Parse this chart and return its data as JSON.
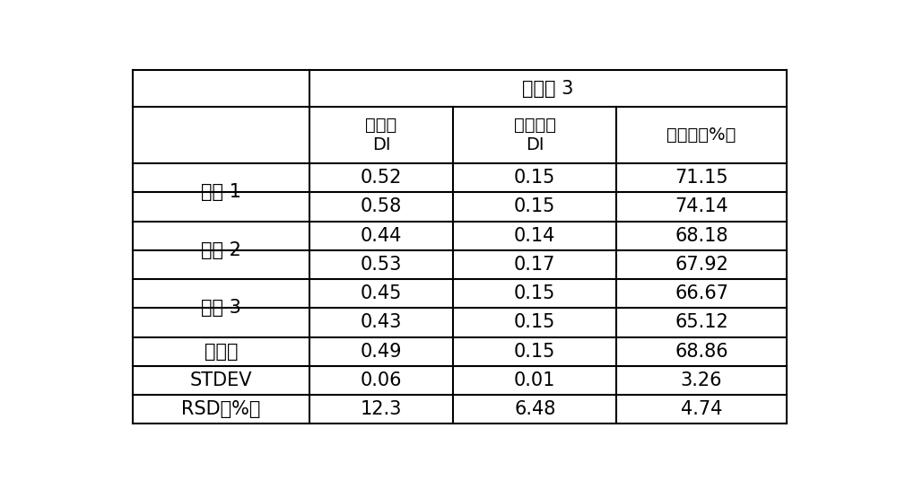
{
  "title": "实施例 3",
  "col1_header": "阳性组\nDI",
  "col2_header": "共培养组\nDI",
  "col3_header": "抑制率（%）",
  "row_groups": [
    {
      "label": "平行 1",
      "rows": [
        [
          "0.52",
          "0.15",
          "71.15"
        ],
        [
          "0.58",
          "0.15",
          "74.14"
        ]
      ]
    },
    {
      "label": "平行 2",
      "rows": [
        [
          "0.44",
          "0.14",
          "68.18"
        ],
        [
          "0.53",
          "0.17",
          "67.92"
        ]
      ]
    },
    {
      "label": "平行 3",
      "rows": [
        [
          "0.45",
          "0.15",
          "66.67"
        ],
        [
          "0.43",
          "0.15",
          "65.12"
        ]
      ]
    }
  ],
  "summary_rows": [
    [
      "平均値",
      "0.49",
      "0.15",
      "68.86"
    ],
    [
      "STDEV",
      "0.06",
      "0.01",
      "3.26"
    ],
    [
      "RSD（%）",
      "12.3",
      "6.48",
      "4.74"
    ]
  ],
  "background_color": "#ffffff",
  "line_color": "#000000",
  "text_color": "#000000",
  "font_size": 15,
  "lw": 1.5
}
